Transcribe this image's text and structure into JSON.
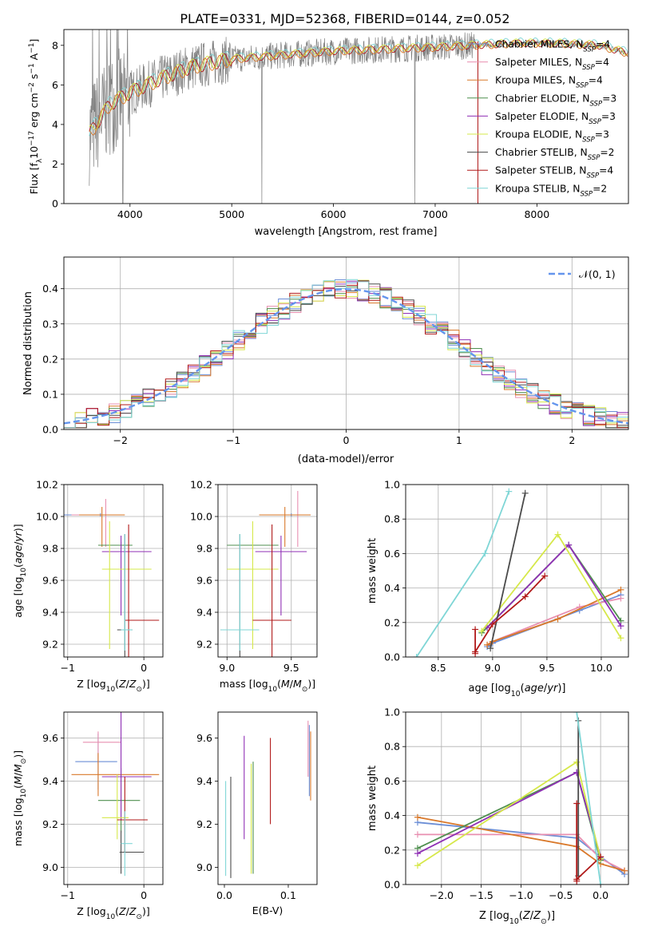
{
  "title": "PLATE=0331, MJD=52368, FIBERID=0144, z=0.052",
  "colors": {
    "chabrier_miles": "#6b8ed6",
    "salpeter_miles": "#e88fb0",
    "kroupa_miles": "#d9782a",
    "chabrier_elodie": "#4f8f4f",
    "salpeter_elodie": "#8f2fb5",
    "kroupa_elodie": "#d6e84a",
    "chabrier_stelib": "#4a4a4a",
    "salpeter_stelib": "#b01818",
    "kroupa_stelib": "#7fd6d6",
    "data_gray": "#808080",
    "normal_curve": "#6495ed"
  },
  "legend": {
    "chabrier_miles": "Chabrier MILES, N",
    "salpeter_miles": "Salpeter MILES, N",
    "kroupa_miles": "Kroupa MILES, N",
    "chabrier_elodie": "Chabrier ELODIE, N",
    "salpeter_elodie": "Salpeter ELODIE, N",
    "kroupa_elodie": "Kroupa ELODIE, N",
    "chabrier_stelib": "Chabrier STELIB, N",
    "salpeter_stelib": "Salpeter STELIB, N",
    "kroupa_stelib": "Kroupa STELIB, N",
    "ssp_sub": "SSP",
    "nssp": [
      "=4",
      "=4",
      "=4",
      "=3",
      "=3",
      "=3",
      "=2",
      "=4",
      "=2"
    ],
    "normal": "𝒩(0, 1)"
  },
  "chart_data": [
    {
      "type": "line",
      "panel": "spectrum",
      "xlabel": "wavelength [Angstrom, rest frame]",
      "ylabel": "Flux [f_λ 10^-17 erg cm^-2 s^-1 A^-1]",
      "xlim": [
        3350,
        8900
      ],
      "ylim": [
        0,
        8.8
      ],
      "xticks": [
        4000,
        5000,
        6000,
        7000,
        8000
      ],
      "yticks": [
        0,
        2,
        4,
        6,
        8
      ],
      "grid": false,
      "legend_placement": "top-right",
      "data_envelope": {
        "x": [
          3600,
          3800,
          4000,
          4300,
          4600,
          5000,
          5500,
          6000,
          6500,
          7000,
          7400,
          7800,
          8200,
          8600,
          8900
        ],
        "y": [
          3.5,
          5.0,
          5.6,
          6.3,
          6.9,
          7.3,
          7.5,
          7.7,
          7.8,
          7.9,
          8.0,
          8.1,
          8.1,
          8.0,
          7.6
        ]
      }
    },
    {
      "type": "bar",
      "panel": "residual-histogram",
      "xlabel": "(data-model)/error",
      "ylabel": "Normed distribution",
      "xlim": [
        -2.5,
        2.5
      ],
      "ylim": [
        0,
        0.49
      ],
      "xticks": [
        -2,
        -1,
        0,
        1,
        2
      ],
      "yticks": [
        0.0,
        0.1,
        0.2,
        0.3,
        0.4
      ],
      "grid": true,
      "legend_placement": "top-right",
      "bin_width": 0.1,
      "curve": "normal(0,1)"
    },
    {
      "type": "scatter",
      "panel": "age-vs-Z",
      "xlabel": "Z [log10(Z/Z☉)]",
      "ylabel": "age  [log10(age/yr)]",
      "xlim": [
        -1.05,
        0.25
      ],
      "ylim": [
        9.12,
        10.2
      ],
      "xticks": [
        -1,
        0
      ],
      "yticks": [
        9.2,
        9.4,
        9.6,
        9.8,
        10.0,
        10.2
      ],
      "grid": true,
      "series": [
        {
          "x": -0.57,
          "xerr": [
            0.5,
            0.25
          ],
          "y": 10.01,
          "yerr": [
            0.01,
            0.01
          ]
        },
        {
          "x": -0.5,
          "xerr": [
            0.45,
            0.23
          ],
          "y": 10.01,
          "yerr": [
            0.2,
            0.1
          ]
        },
        {
          "x": -0.55,
          "xerr": [
            0.3,
            0.3
          ],
          "y": 10.01,
          "yerr": [
            0.2,
            0.05
          ]
        },
        {
          "x": -0.3,
          "xerr": [
            0.3,
            0.15
          ],
          "y": 9.82,
          "yerr": [
            0.02,
            0.02
          ]
        },
        {
          "x": -0.3,
          "xerr": [
            0.25,
            0.4
          ],
          "y": 9.78,
          "yerr": [
            0.4,
            0.1
          ]
        },
        {
          "x": -0.45,
          "xerr": [
            0.1,
            0.55
          ],
          "y": 9.67,
          "yerr": [
            0.5,
            0.3
          ]
        },
        {
          "x": -0.25,
          "xerr": [
            0.1,
            0.1
          ],
          "y": 9.29,
          "yerr": [
            0.6,
            0.6
          ]
        },
        {
          "x": -0.2,
          "xerr": [
            0.05,
            0.4
          ],
          "y": 9.35,
          "yerr": [
            0.6,
            0.6
          ]
        },
        {
          "x": -0.25,
          "xerr": [
            0.05,
            0.1
          ],
          "y": 9.29,
          "yerr": [
            0.13,
            0.6
          ]
        }
      ]
    },
    {
      "type": "scatter",
      "panel": "age-vs-mass",
      "xlabel": "mass [log10(M/M☉)]",
      "ylabel": "",
      "xlim": [
        8.93,
        9.7
      ],
      "ylim": [
        9.12,
        10.2
      ],
      "xticks": [
        9.0,
        9.5
      ],
      "yticks": [
        9.2,
        9.4,
        9.6,
        9.8,
        10.0,
        10.2
      ],
      "grid": true,
      "series": [
        {
          "x": 9.5,
          "xerr": [
            0.2,
            0.1
          ],
          "y": 10.01,
          "yerr": [
            0.01,
            0.01
          ]
        },
        {
          "x": 9.55,
          "xerr": [
            0.1,
            0.1
          ],
          "y": 10.01,
          "yerr": [
            0.2,
            0.15
          ]
        },
        {
          "x": 9.45,
          "xerr": [
            0.2,
            0.2
          ],
          "y": 10.01,
          "yerr": [
            0.2,
            0.05
          ]
        },
        {
          "x": 9.2,
          "xerr": [
            0.2,
            0.2
          ],
          "y": 9.82,
          "yerr": [
            0.02,
            0.02
          ]
        },
        {
          "x": 9.42,
          "xerr": [
            0.2,
            0.2
          ],
          "y": 9.78,
          "yerr": [
            0.4,
            0.1
          ]
        },
        {
          "x": 9.2,
          "xerr": [
            0.2,
            0.2
          ],
          "y": 9.67,
          "yerr": [
            0.5,
            0.3
          ]
        },
        {
          "x": 9.1,
          "xerr": [
            0.15,
            0.15
          ],
          "y": 9.29,
          "yerr": [
            0.6,
            0.6
          ]
        },
        {
          "x": 9.35,
          "xerr": [
            0.15,
            0.15
          ],
          "y": 9.35,
          "yerr": [
            0.6,
            0.6
          ]
        },
        {
          "x": 9.1,
          "xerr": [
            0.15,
            0.15
          ],
          "y": 9.29,
          "yerr": [
            0.13,
            0.6
          ]
        }
      ]
    },
    {
      "type": "line",
      "panel": "mass-weight-vs-age",
      "xlabel": "age  [log10(age/yr)]",
      "ylabel": "mass weight",
      "xlim": [
        8.2,
        10.25
      ],
      "ylim": [
        0,
        1.0
      ],
      "xticks": [
        8.5,
        9.0,
        9.5,
        10.0
      ],
      "yticks": [
        0.0,
        0.2,
        0.4,
        0.6,
        0.8,
        1.0
      ],
      "grid": true,
      "series": [
        {
          "key": "chabrier_miles",
          "x": [
            8.95,
            9.0,
            9.8,
            10.18
          ],
          "y": [
            0.06,
            0.08,
            0.27,
            0.36
          ]
        },
        {
          "key": "salpeter_miles",
          "x": [
            8.95,
            9.0,
            9.8,
            10.18
          ],
          "y": [
            0.07,
            0.09,
            0.29,
            0.34
          ]
        },
        {
          "key": "kroupa_miles",
          "x": [
            8.95,
            9.0,
            9.6,
            10.18
          ],
          "y": [
            0.07,
            0.09,
            0.22,
            0.39
          ]
        },
        {
          "key": "chabrier_elodie",
          "x": [
            8.9,
            9.7,
            10.18
          ],
          "y": [
            0.14,
            0.65,
            0.21
          ]
        },
        {
          "key": "salpeter_elodie",
          "x": [
            8.95,
            9.7,
            10.18
          ],
          "y": [
            0.17,
            0.65,
            0.18
          ]
        },
        {
          "key": "kroupa_elodie",
          "x": [
            8.9,
            9.6,
            10.18
          ],
          "y": [
            0.15,
            0.71,
            0.11
          ]
        },
        {
          "key": "chabrier_stelib",
          "x": [
            8.98,
            9.3
          ],
          "y": [
            0.05,
            0.95
          ]
        },
        {
          "key": "salpeter_stelib",
          "x": [
            8.84,
            8.84,
            8.84,
            9.0,
            9.3,
            9.48
          ],
          "y": [
            0.16,
            0.02,
            0.03,
            0.19,
            0.35,
            0.47
          ]
        },
        {
          "key": "kroupa_stelib",
          "x": [
            8.3,
            8.93,
            9.15
          ],
          "y": [
            0.0,
            0.6,
            0.96
          ]
        }
      ]
    },
    {
      "type": "scatter",
      "panel": "mass-vs-Z",
      "xlabel": "Z [log10(Z/Z☉)]",
      "ylabel": "mass [log10(M/M☉)]",
      "xlim": [
        -1.05,
        0.25
      ],
      "ylim": [
        8.92,
        9.72
      ],
      "xticks": [
        -1,
        0
      ],
      "yticks": [
        9.0,
        9.2,
        9.4,
        9.6
      ],
      "grid": true,
      "series": [
        {
          "x": -0.6,
          "xerr": [
            0.3,
            0.25
          ],
          "y": 9.49,
          "yerr": [
            0.13,
            0.13
          ]
        },
        {
          "x": -0.6,
          "xerr": [
            0.2,
            0.3
          ],
          "y": 9.58,
          "yerr": [
            0.1,
            0.05
          ]
        },
        {
          "x": -0.6,
          "xerr": [
            0.35,
            0.8
          ],
          "y": 9.43,
          "yerr": [
            0.1,
            0.1
          ]
        },
        {
          "x": -0.3,
          "xerr": [
            0.3,
            0.25
          ],
          "y": 9.31,
          "yerr": [
            0.15,
            0.15
          ]
        },
        {
          "x": -0.3,
          "xerr": [
            0.25,
            0.4
          ],
          "y": 9.42,
          "yerr": [
            0.2,
            0.3
          ]
        },
        {
          "x": -0.35,
          "xerr": [
            0.2,
            0.15
          ],
          "y": 9.23,
          "yerr": [
            0.1,
            0.2
          ]
        },
        {
          "x": -0.3,
          "xerr": [
            0.02,
            0.3
          ],
          "y": 9.07,
          "yerr": [
            0.1,
            0.1
          ]
        },
        {
          "x": -0.25,
          "xerr": [
            0.1,
            0.3
          ],
          "y": 9.22,
          "yerr": [
            0.15,
            0.2
          ]
        },
        {
          "x": -0.25,
          "xerr": [
            0.05,
            0.1
          ],
          "y": 9.11,
          "yerr": [
            0.15,
            0.15
          ]
        }
      ]
    },
    {
      "type": "scatter",
      "panel": "mass-vs-EBV",
      "xlabel": "E(B-V)",
      "ylabel": "",
      "xlim": [
        -0.01,
        0.145
      ],
      "ylim": [
        8.92,
        9.72
      ],
      "xticks": [
        0.0,
        0.1
      ],
      "yticks": [
        9.0,
        9.2,
        9.4,
        9.6
      ],
      "grid": false,
      "series": [
        {
          "x": 0.133,
          "ylo": 9.33,
          "yhi": 9.66
        },
        {
          "x": 0.131,
          "ylo": 9.42,
          "yhi": 9.68
        },
        {
          "x": 0.135,
          "ylo": 9.31,
          "yhi": 9.63
        },
        {
          "x": 0.045,
          "ylo": 8.97,
          "yhi": 9.49
        },
        {
          "x": 0.031,
          "ylo": 9.13,
          "yhi": 9.61
        },
        {
          "x": 0.042,
          "ylo": 8.97,
          "yhi": 9.48
        },
        {
          "x": 0.01,
          "ylo": 8.95,
          "yhi": 9.42
        },
        {
          "x": 0.072,
          "ylo": 9.2,
          "yhi": 9.6
        },
        {
          "x": 0.002,
          "ylo": 8.96,
          "yhi": 9.4
        }
      ]
    },
    {
      "type": "line",
      "panel": "mass-weight-vs-Z",
      "xlabel": "Z [log10(Z/Z☉)]",
      "ylabel": "mass weight",
      "xlim": [
        -2.45,
        0.35
      ],
      "ylim": [
        0,
        1.0
      ],
      "xticks": [
        -2.0,
        -1.5,
        -1.0,
        -0.5,
        0.0
      ],
      "yticks": [
        0.0,
        0.2,
        0.4,
        0.6,
        0.8,
        1.0
      ],
      "grid": true,
      "series": [
        {
          "key": "chabrier_miles",
          "x": [
            -2.3,
            -0.3,
            0.0,
            0.3
          ],
          "y": [
            0.36,
            0.27,
            0.16,
            0.06
          ]
        },
        {
          "key": "salpeter_miles",
          "x": [
            -2.3,
            -0.3,
            0.0,
            0.3
          ],
          "y": [
            0.29,
            0.29,
            0.15,
            0.08
          ]
        },
        {
          "key": "kroupa_miles",
          "x": [
            -2.3,
            -0.3,
            0.0,
            0.3
          ],
          "y": [
            0.39,
            0.22,
            0.12,
            0.08
          ]
        },
        {
          "key": "chabrier_elodie",
          "x": [
            -2.3,
            -0.3,
            0.0
          ],
          "y": [
            0.21,
            0.65,
            0.14
          ]
        },
        {
          "key": "salpeter_elodie",
          "x": [
            -2.3,
            -0.3,
            0.0
          ],
          "y": [
            0.18,
            0.65,
            0.16
          ]
        },
        {
          "key": "kroupa_elodie",
          "x": [
            -2.3,
            -0.3,
            0.0
          ],
          "y": [
            0.11,
            0.71,
            0.15
          ]
        },
        {
          "key": "chabrier_stelib",
          "x": [
            -0.28,
            -0.28
          ],
          "y": [
            0.05,
            0.95
          ]
        },
        {
          "key": "salpeter_stelib",
          "x": [
            -0.3,
            -0.3,
            -0.3,
            0.0
          ],
          "y": [
            0.47,
            0.02,
            0.03,
            0.16
          ]
        },
        {
          "key": "kroupa_stelib",
          "x": [
            -0.3,
            0.0
          ],
          "y": [
            1.0,
            0.0
          ]
        }
      ]
    }
  ]
}
